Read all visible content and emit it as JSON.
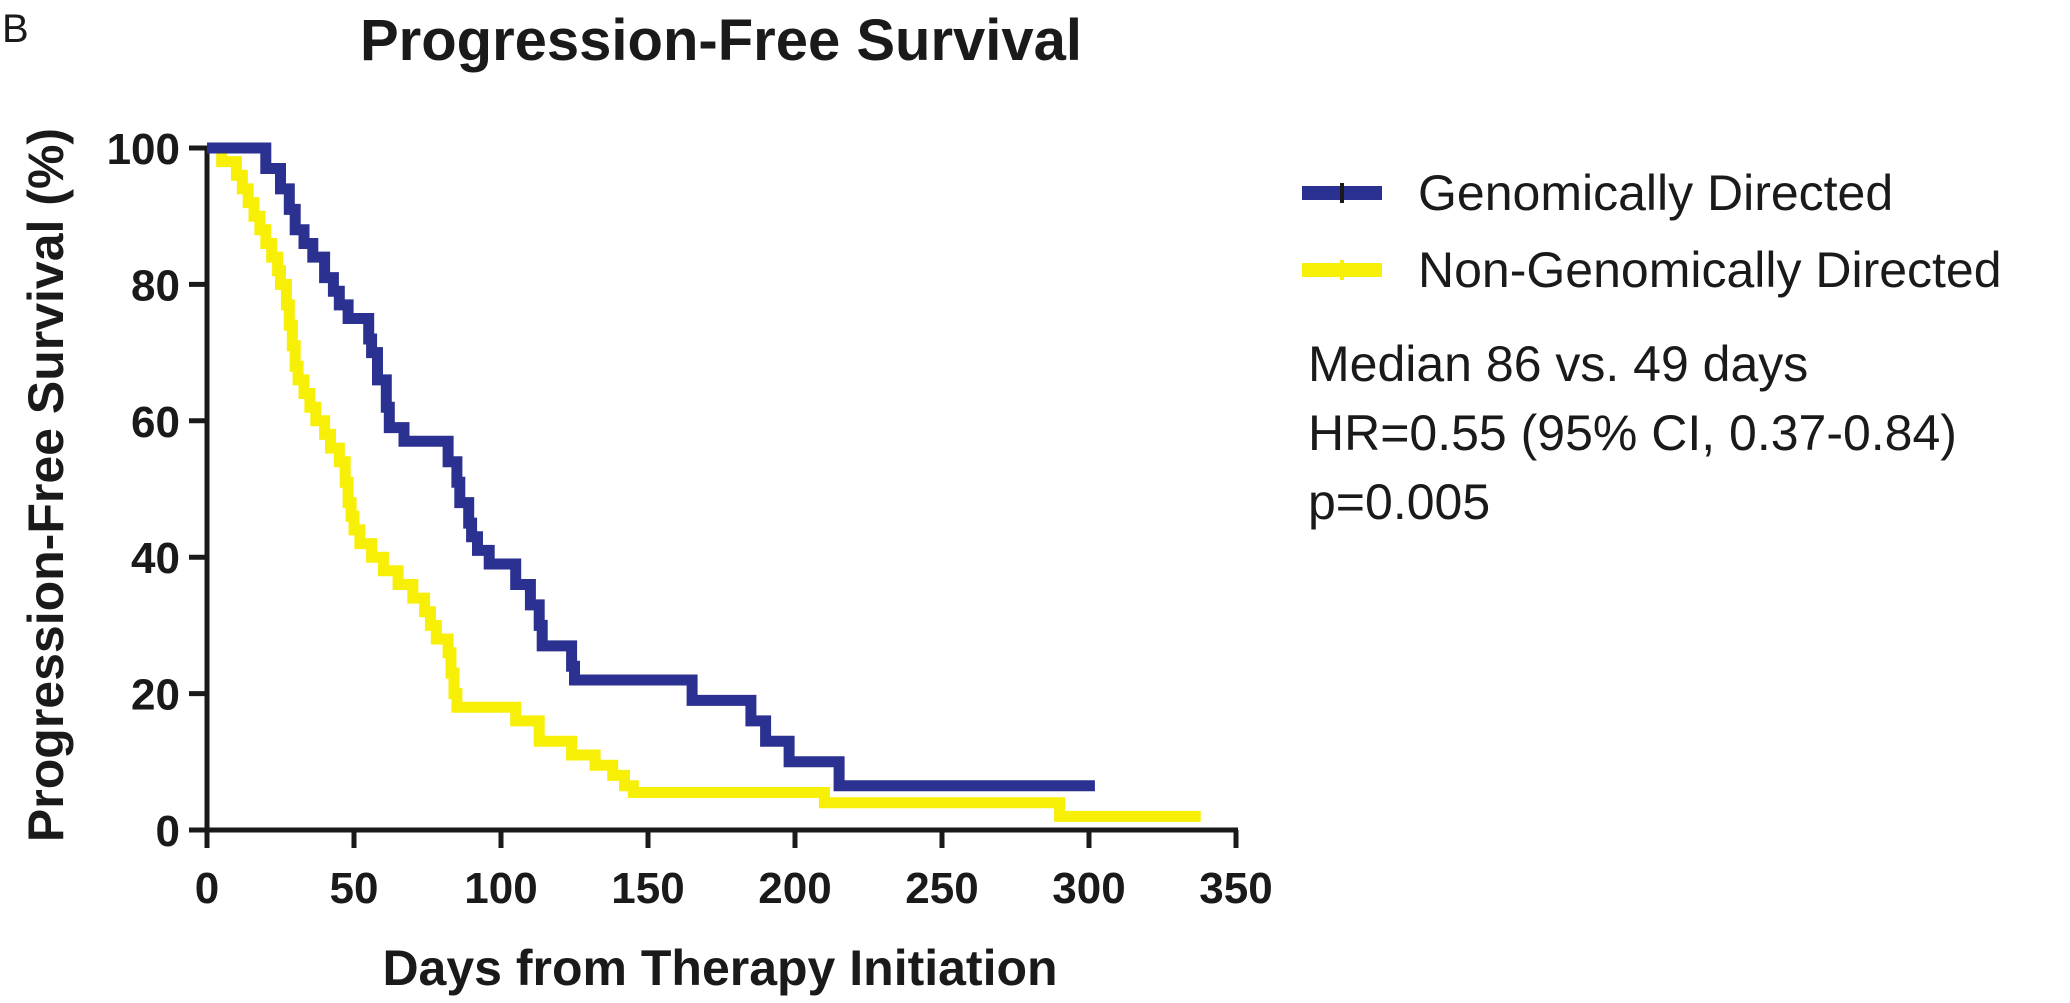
{
  "panel_label": "B",
  "chart_data": {
    "type": "line",
    "step": true,
    "title": "Progression-Free Survival",
    "xlabel": "Days from Therapy Initiation",
    "ylabel": "Progression-Free Survival (%)",
    "xlim": [
      0,
      350
    ],
    "ylim": [
      0,
      100
    ],
    "xticks": [
      0,
      50,
      100,
      150,
      200,
      250,
      300,
      350
    ],
    "yticks": [
      0,
      20,
      40,
      60,
      80,
      100
    ],
    "grid": false,
    "legend_position": "right",
    "series": [
      {
        "name": "Genomically Directed",
        "color": "#2b3190",
        "points": [
          [
            0,
            100
          ],
          [
            20,
            100
          ],
          [
            20,
            97
          ],
          [
            25,
            97
          ],
          [
            25,
            94
          ],
          [
            28,
            94
          ],
          [
            28,
            91
          ],
          [
            30,
            91
          ],
          [
            30,
            88
          ],
          [
            33,
            88
          ],
          [
            33,
            86
          ],
          [
            36,
            86
          ],
          [
            36,
            84
          ],
          [
            40,
            84
          ],
          [
            40,
            81
          ],
          [
            43,
            81
          ],
          [
            43,
            79
          ],
          [
            45,
            79
          ],
          [
            45,
            77
          ],
          [
            48,
            77
          ],
          [
            48,
            75
          ],
          [
            55,
            75
          ],
          [
            55,
            72
          ],
          [
            56,
            72
          ],
          [
            56,
            70
          ],
          [
            58,
            70
          ],
          [
            58,
            66
          ],
          [
            61,
            66
          ],
          [
            61,
            62
          ],
          [
            62,
            62
          ],
          [
            62,
            59
          ],
          [
            67,
            59
          ],
          [
            67,
            57
          ],
          [
            82,
            57
          ],
          [
            82,
            54
          ],
          [
            85,
            54
          ],
          [
            85,
            51
          ],
          [
            86,
            51
          ],
          [
            86,
            48
          ],
          [
            89,
            48
          ],
          [
            89,
            45
          ],
          [
            90,
            45
          ],
          [
            90,
            43
          ],
          [
            92,
            43
          ],
          [
            92,
            41
          ],
          [
            96,
            41
          ],
          [
            96,
            39
          ],
          [
            105,
            39
          ],
          [
            105,
            36
          ],
          [
            110,
            36
          ],
          [
            110,
            33
          ],
          [
            113,
            33
          ],
          [
            113,
            30
          ],
          [
            114,
            30
          ],
          [
            114,
            27
          ],
          [
            124,
            27
          ],
          [
            124,
            24
          ],
          [
            125,
            24
          ],
          [
            125,
            22
          ],
          [
            165,
            22
          ],
          [
            165,
            19
          ],
          [
            185,
            19
          ],
          [
            185,
            16
          ],
          [
            190,
            16
          ],
          [
            190,
            13
          ],
          [
            198,
            13
          ],
          [
            198,
            10
          ],
          [
            215,
            10
          ],
          [
            215,
            6.5
          ],
          [
            302,
            6.5
          ]
        ]
      },
      {
        "name": "Non-Genomically Directed",
        "color": "#f7ef05",
        "points": [
          [
            0,
            100
          ],
          [
            5,
            100
          ],
          [
            5,
            98
          ],
          [
            10,
            98
          ],
          [
            10,
            96
          ],
          [
            12,
            96
          ],
          [
            12,
            94
          ],
          [
            14,
            94
          ],
          [
            14,
            92
          ],
          [
            16,
            92
          ],
          [
            16,
            90
          ],
          [
            18,
            90
          ],
          [
            18,
            88
          ],
          [
            20,
            88
          ],
          [
            20,
            86
          ],
          [
            22,
            86
          ],
          [
            22,
            84
          ],
          [
            24,
            84
          ],
          [
            24,
            82
          ],
          [
            25,
            82
          ],
          [
            25,
            80
          ],
          [
            27,
            80
          ],
          [
            27,
            77
          ],
          [
            28,
            77
          ],
          [
            28,
            74
          ],
          [
            29,
            74
          ],
          [
            29,
            71
          ],
          [
            30,
            71
          ],
          [
            30,
            68
          ],
          [
            31,
            68
          ],
          [
            31,
            66
          ],
          [
            33,
            66
          ],
          [
            33,
            64
          ],
          [
            35,
            64
          ],
          [
            35,
            62
          ],
          [
            37,
            62
          ],
          [
            37,
            60
          ],
          [
            40,
            60
          ],
          [
            40,
            58
          ],
          [
            42,
            58
          ],
          [
            42,
            56
          ],
          [
            45,
            56
          ],
          [
            45,
            54
          ],
          [
            47,
            54
          ],
          [
            47,
            51
          ],
          [
            48,
            51
          ],
          [
            48,
            48
          ],
          [
            49,
            48
          ],
          [
            49,
            46
          ],
          [
            50,
            46
          ],
          [
            50,
            44
          ],
          [
            52,
            44
          ],
          [
            52,
            42
          ],
          [
            56,
            42
          ],
          [
            56,
            40
          ],
          [
            60,
            40
          ],
          [
            60,
            38
          ],
          [
            65,
            38
          ],
          [
            65,
            36
          ],
          [
            70,
            36
          ],
          [
            70,
            34
          ],
          [
            74,
            34
          ],
          [
            74,
            32
          ],
          [
            76,
            32
          ],
          [
            76,
            30
          ],
          [
            78,
            30
          ],
          [
            78,
            28
          ],
          [
            82,
            28
          ],
          [
            82,
            26
          ],
          [
            83,
            26
          ],
          [
            83,
            23
          ],
          [
            84,
            23
          ],
          [
            84,
            20
          ],
          [
            85,
            20
          ],
          [
            85,
            18
          ],
          [
            105,
            18
          ],
          [
            105,
            16
          ],
          [
            113,
            16
          ],
          [
            113,
            13
          ],
          [
            124,
            13
          ],
          [
            124,
            11
          ],
          [
            132,
            11
          ],
          [
            132,
            9.5
          ],
          [
            138,
            9.5
          ],
          [
            138,
            8
          ],
          [
            142,
            8
          ],
          [
            142,
            6.5
          ],
          [
            145,
            6.5
          ],
          [
            145,
            5.5
          ],
          [
            210,
            5.5
          ],
          [
            210,
            4
          ],
          [
            290,
            4
          ],
          [
            290,
            2
          ],
          [
            338,
            2
          ]
        ]
      }
    ],
    "annotations": [
      "Median 86 vs. 49 days",
      "HR=0.55 (95% CI, 0.37-0.84)",
      "p=0.005"
    ]
  }
}
